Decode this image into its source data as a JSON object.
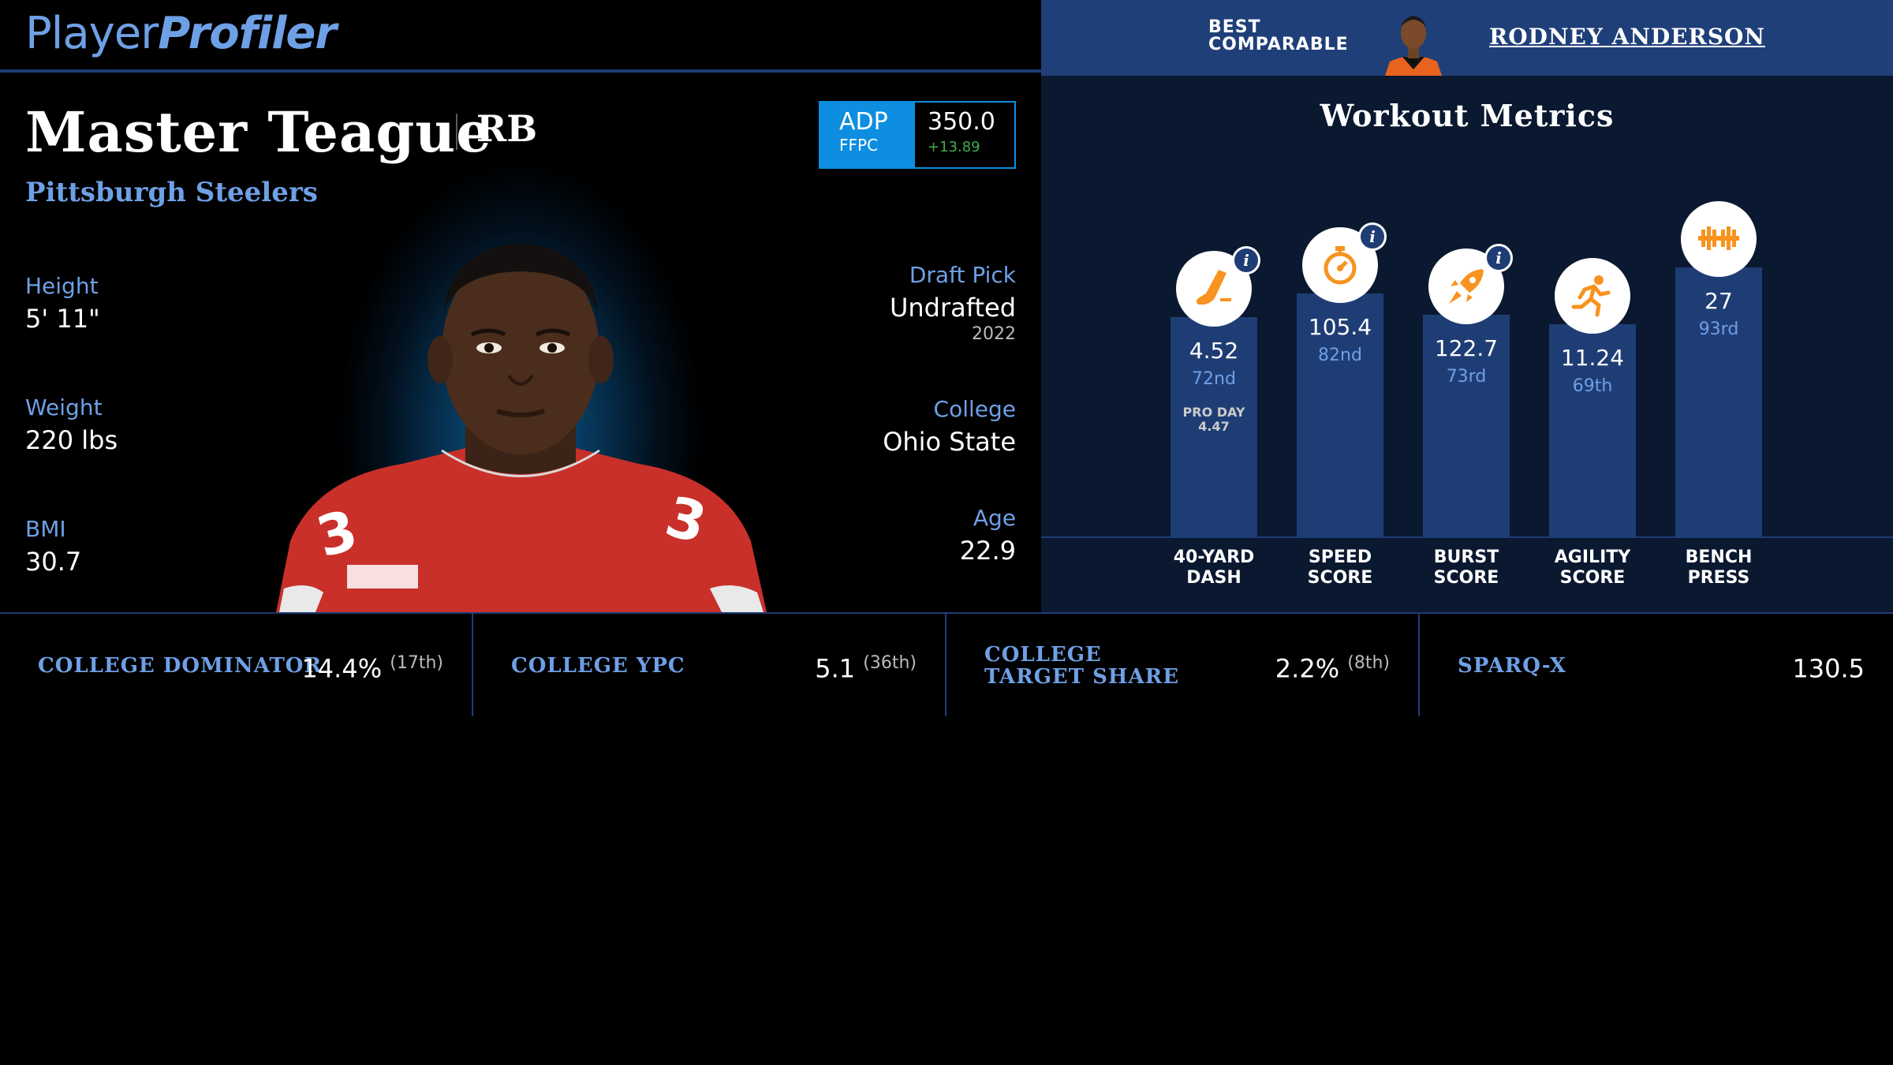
{
  "header": {
    "logo_part1": "Player",
    "logo_part2": "Profiler"
  },
  "comparable": {
    "label_line1": "BEST",
    "label_line2": "COMPARABLE",
    "name": "RODNEY ANDERSON"
  },
  "player": {
    "name": "Master Teague",
    "position": "RB",
    "team": "Pittsburgh Steelers",
    "adp": {
      "label": "ADP",
      "source": "FFPC",
      "value": "350.0",
      "change": "+13.89"
    },
    "left_stats": [
      {
        "label": "Height",
        "value": "5' 11\""
      },
      {
        "label": "Weight",
        "value": "220 lbs"
      },
      {
        "label": "BMI",
        "value": "30.7"
      }
    ],
    "right_stats": [
      {
        "label": "Draft Pick",
        "value": "Undrafted",
        "sub": "2022"
      },
      {
        "label": "College",
        "value": "Ohio State"
      },
      {
        "label": "Age",
        "value": "22.9"
      }
    ]
  },
  "workout": {
    "title": "Workout Metrics",
    "metrics": [
      {
        "label_line1": "40-YARD",
        "label_line2": "DASH",
        "value": "4.52",
        "rank": "72nd",
        "pro_day_label": "PRO DAY",
        "pro_day_value": "4.47",
        "icon": "shoe-icon",
        "has_info": true,
        "percentile": 72
      },
      {
        "label_line1": "SPEED",
        "label_line2": "SCORE",
        "value": "105.4",
        "rank": "82nd",
        "icon": "stopwatch-icon",
        "has_info": true,
        "percentile": 82
      },
      {
        "label_line1": "BURST",
        "label_line2": "SCORE",
        "value": "122.7",
        "rank": "73rd",
        "icon": "rocket-icon",
        "has_info": true,
        "percentile": 73
      },
      {
        "label_line1": "AGILITY",
        "label_line2": "SCORE",
        "value": "11.24",
        "rank": "69th",
        "icon": "runner-icon",
        "has_info": false,
        "percentile": 69
      },
      {
        "label_line1": "BENCH",
        "label_line2": "PRESS",
        "value": "27",
        "rank": "93rd",
        "icon": "dumbbell-icon",
        "has_info": false,
        "percentile": 93
      }
    ]
  },
  "bottom_stats": [
    {
      "label": "COLLEGE DOMINATOR",
      "value": "14.4%",
      "rank": "(17th)"
    },
    {
      "label": "COLLEGE YPC",
      "value": "5.1",
      "rank": "(36th)"
    },
    {
      "label": "COLLEGE TARGET SHARE",
      "value": "2.2%",
      "rank": "(8th)"
    },
    {
      "label": "SPARQ-X",
      "value": "130.5",
      "rank": ""
    }
  ],
  "colors": {
    "accent": "#6ea0e6",
    "bar": "#1f3d75",
    "icon": "#f7931e",
    "adp": "#0d8ee0",
    "positive": "#3fae4c"
  }
}
